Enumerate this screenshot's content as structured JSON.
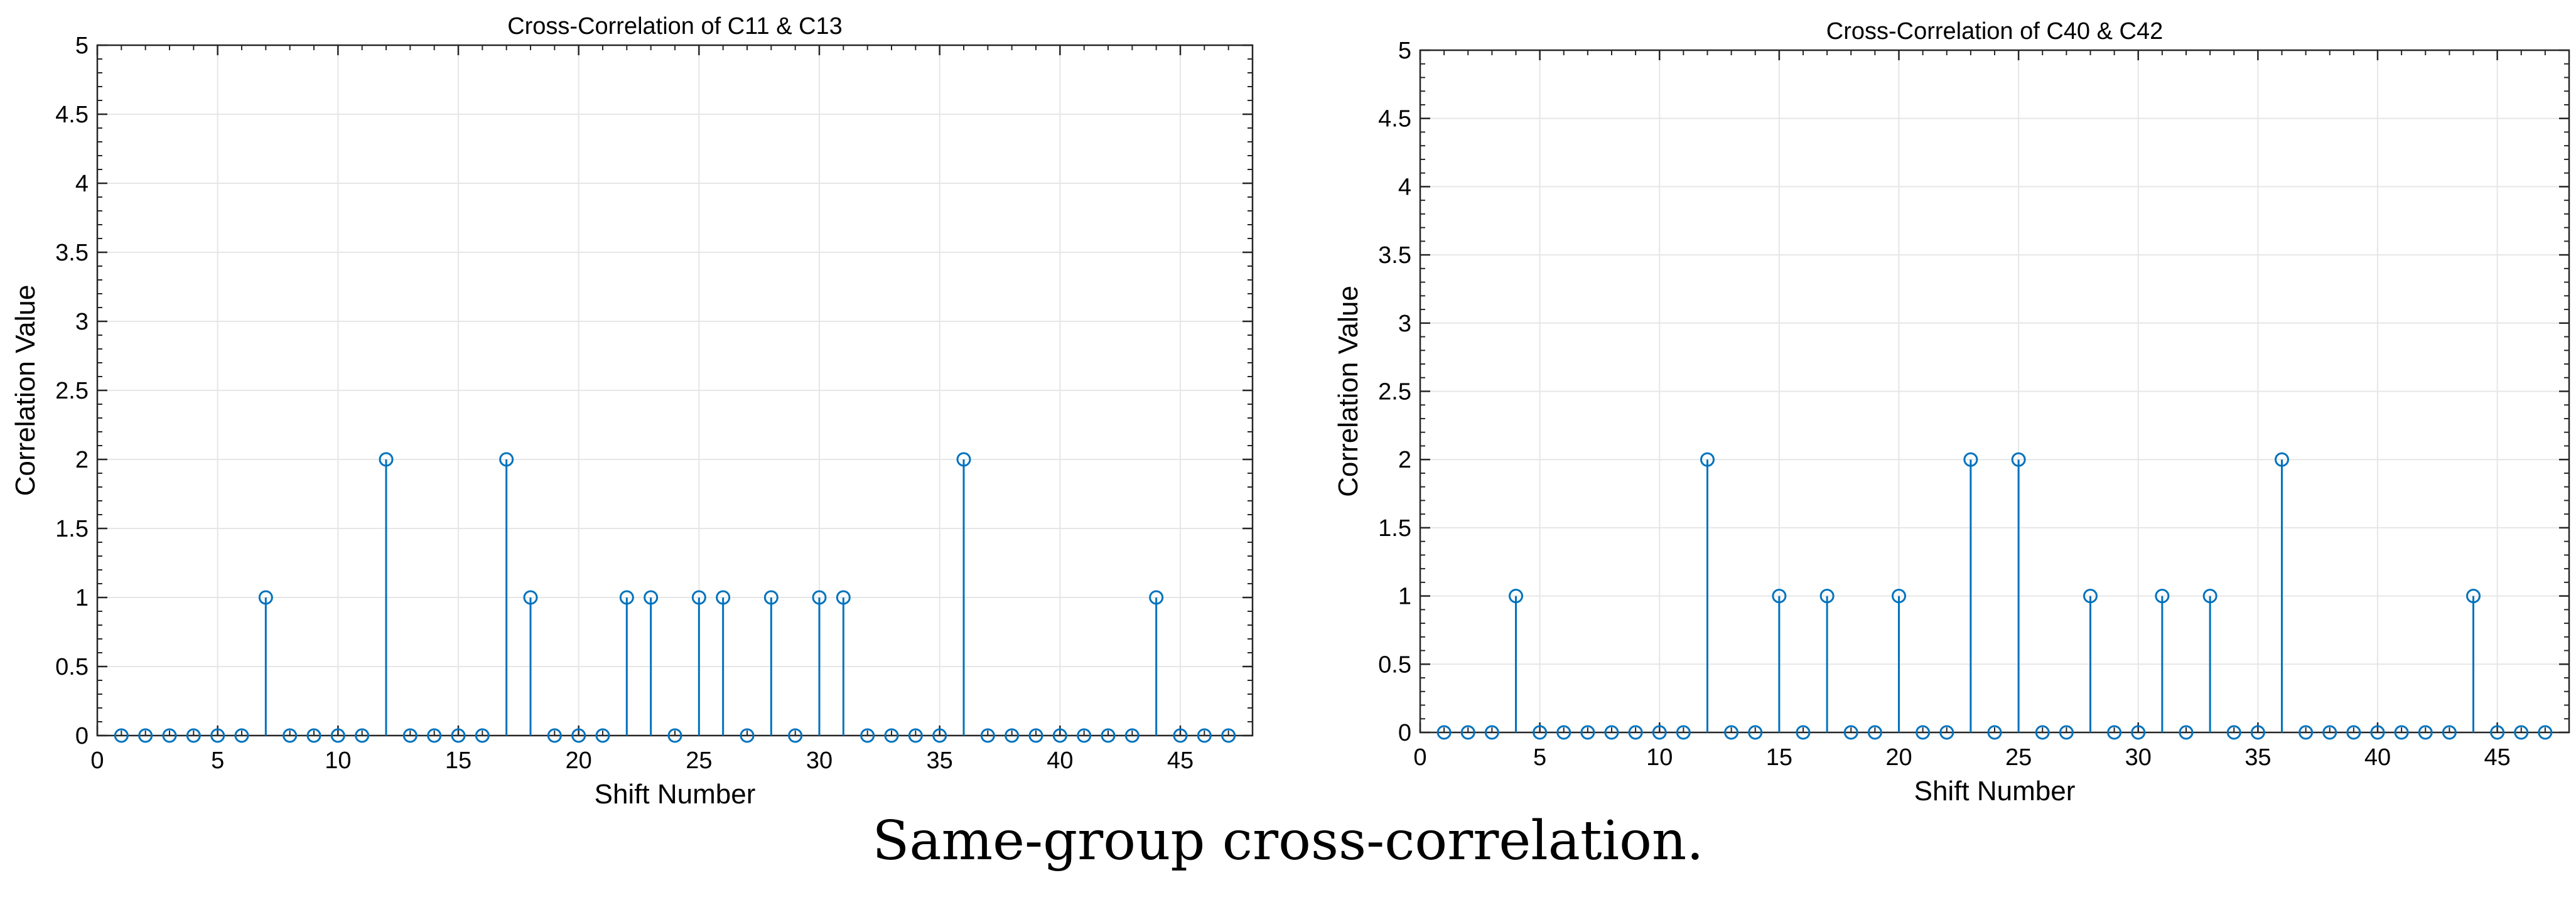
{
  "caption": "Same-group cross-correlation.",
  "colors": {
    "stem": "#0072BD",
    "grid": "#e6e6e6",
    "axis": "#262626"
  },
  "chart_data": [
    {
      "type": "stem",
      "title": "Cross-Correlation of C11 & C13",
      "xlabel": "Shift Number",
      "ylabel": "Correlation Value",
      "xlim": [
        0,
        48
      ],
      "ylim": [
        0,
        5
      ],
      "xticks": [
        0,
        5,
        10,
        15,
        20,
        25,
        30,
        35,
        40,
        45
      ],
      "yticks": [
        0,
        0.5,
        1,
        1.5,
        2,
        2.5,
        3,
        3.5,
        4,
        4.5,
        5
      ],
      "grid": true,
      "x": [
        1,
        2,
        3,
        4,
        5,
        6,
        7,
        8,
        9,
        10,
        11,
        12,
        13,
        14,
        15,
        16,
        17,
        18,
        19,
        20,
        21,
        22,
        23,
        24,
        25,
        26,
        27,
        28,
        29,
        30,
        31,
        32,
        33,
        34,
        35,
        36,
        37,
        38,
        39,
        40,
        41,
        42,
        43,
        44,
        45,
        46,
        47
      ],
      "values": [
        0,
        0,
        0,
        0,
        0,
        0,
        1,
        0,
        0,
        0,
        0,
        2,
        0,
        0,
        0,
        0,
        2,
        1,
        0,
        0,
        0,
        1,
        1,
        0,
        1,
        1,
        0,
        1,
        0,
        1,
        1,
        0,
        0,
        0,
        0,
        2,
        0,
        0,
        0,
        0,
        0,
        0,
        0,
        1,
        0,
        0,
        0
      ]
    },
    {
      "type": "stem",
      "title": "Cross-Correlation of C40 & C42",
      "xlabel": "Shift Number",
      "ylabel": "Correlation Value",
      "xlim": [
        0,
        48
      ],
      "ylim": [
        0,
        5
      ],
      "xticks": [
        0,
        5,
        10,
        15,
        20,
        25,
        30,
        35,
        40,
        45
      ],
      "yticks": [
        0,
        0.5,
        1,
        1.5,
        2,
        2.5,
        3,
        3.5,
        4,
        4.5,
        5
      ],
      "grid": true,
      "x": [
        1,
        2,
        3,
        4,
        5,
        6,
        7,
        8,
        9,
        10,
        11,
        12,
        13,
        14,
        15,
        16,
        17,
        18,
        19,
        20,
        21,
        22,
        23,
        24,
        25,
        26,
        27,
        28,
        29,
        30,
        31,
        32,
        33,
        34,
        35,
        36,
        37,
        38,
        39,
        40,
        41,
        42,
        43,
        44,
        45,
        46,
        47
      ],
      "values": [
        0,
        0,
        0,
        1,
        0,
        0,
        0,
        0,
        0,
        0,
        0,
        2,
        0,
        0,
        1,
        0,
        1,
        0,
        0,
        1,
        0,
        0,
        2,
        0,
        2,
        0,
        0,
        1,
        0,
        0,
        1,
        0,
        1,
        0,
        0,
        2,
        0,
        0,
        0,
        0,
        0,
        0,
        0,
        1,
        0,
        0,
        0
      ]
    }
  ]
}
